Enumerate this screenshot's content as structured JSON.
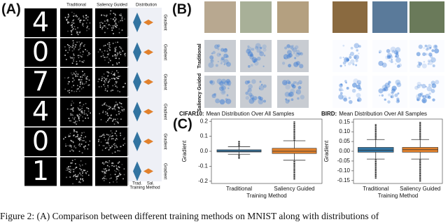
{
  "panels": {
    "a": "(A)",
    "b": "(B)",
    "c": "(C)"
  },
  "panel_a": {
    "headers": [
      "Traditional",
      "Saliency Guided",
      "Distribution"
    ],
    "digits": [
      "4",
      "0",
      "7",
      "4",
      "0",
      "1"
    ],
    "violin_ylabel": "Gradient",
    "violin_categories": [
      "Trad.",
      "Sal."
    ],
    "violin_xlabel": "Training Method"
  },
  "panel_b": {
    "row_labels": [
      "Traditional",
      "Saliency Guided"
    ]
  },
  "chart_data": [
    {
      "type": "box",
      "title_prefix": "CIFAR10:",
      "title": "Mean Distribution Over All Samples",
      "ylabel": "Gradient",
      "xlabel": "Training Method",
      "categories": [
        "Traditional",
        "Saliency Guided"
      ],
      "colors": [
        "#3274a1",
        "#e1812c"
      ],
      "boxes": [
        {
          "min": -0.05,
          "low": -0.02,
          "q1": -0.005,
          "median": 0.0,
          "q3": 0.01,
          "high": 0.03,
          "max": 0.07
        },
        {
          "min": -0.19,
          "low": -0.06,
          "q1": -0.015,
          "median": 0.0,
          "q3": 0.02,
          "high": 0.07,
          "max": 0.2
        }
      ],
      "ylim": [
        -0.215,
        0.215
      ],
      "yticks": [
        0.2,
        0.1,
        {
          "value": 0,
          "label": "0.0"
        },
        -0.1,
        -0.2
      ]
    },
    {
      "type": "box",
      "title_prefix": "BIRD:",
      "title": "Mean Distribution Over All Samples",
      "ylabel": "Gradient",
      "xlabel": "Training Method",
      "categories": [
        "Traditional",
        "Saliency Guided"
      ],
      "colors": [
        "#3274a1",
        "#e1812c"
      ],
      "boxes": [
        {
          "min": -0.14,
          "low": -0.04,
          "q1": -0.005,
          "median": 0.005,
          "q3": 0.02,
          "high": 0.06,
          "max": 0.14
        },
        {
          "min": -0.155,
          "low": -0.04,
          "q1": -0.005,
          "median": 0.008,
          "q3": 0.02,
          "high": 0.06,
          "max": 0.15
        }
      ],
      "ylim": [
        -0.165,
        0.165
      ],
      "yticks": [
        0.15,
        {
          "value": 0.1,
          "label": "0.10"
        },
        0.05,
        {
          "value": 0,
          "label": "0.00"
        },
        -0.05,
        {
          "value": -0.1,
          "label": "-0.10"
        },
        -0.15
      ]
    }
  ],
  "caption": "Figure 2: (A) Comparison between different training methods on MNIST along with distributions of"
}
